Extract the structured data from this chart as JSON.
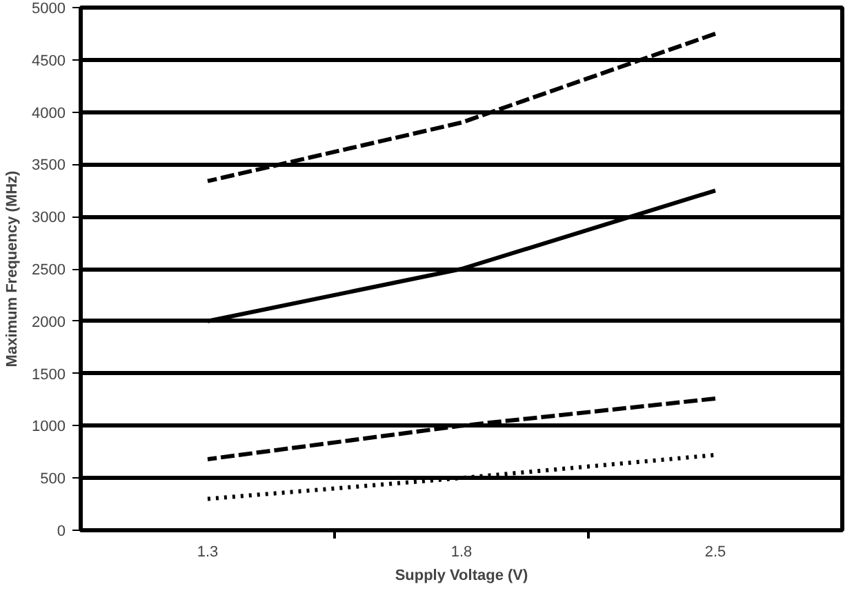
{
  "chart_data": {
    "type": "line",
    "xlabel": "Supply Voltage (V)",
    "ylabel": "Maximum Frequency (MHz)",
    "categories": [
      "1.3",
      "1.8",
      "2.5"
    ],
    "series": [
      {
        "color": "#000000",
        "line_style": "dashed",
        "values": [
          3340,
          3900,
          4750
        ]
      },
      {
        "color": "#000000",
        "line_style": "solid",
        "values": [
          2000,
          2500,
          3250
        ]
      },
      {
        "color": "#000000",
        "line_style": "dashed",
        "values": [
          680,
          1000,
          1260
        ]
      },
      {
        "color": "#000000",
        "line_style": "dotted",
        "values": [
          300,
          500,
          720
        ]
      }
    ],
    "ylim": [
      0,
      5000
    ],
    "yticks": [
      0,
      500,
      1000,
      1500,
      2000,
      2500,
      3000,
      3500,
      4000,
      4500,
      5000
    ],
    "grid": "y",
    "marker": "none"
  }
}
